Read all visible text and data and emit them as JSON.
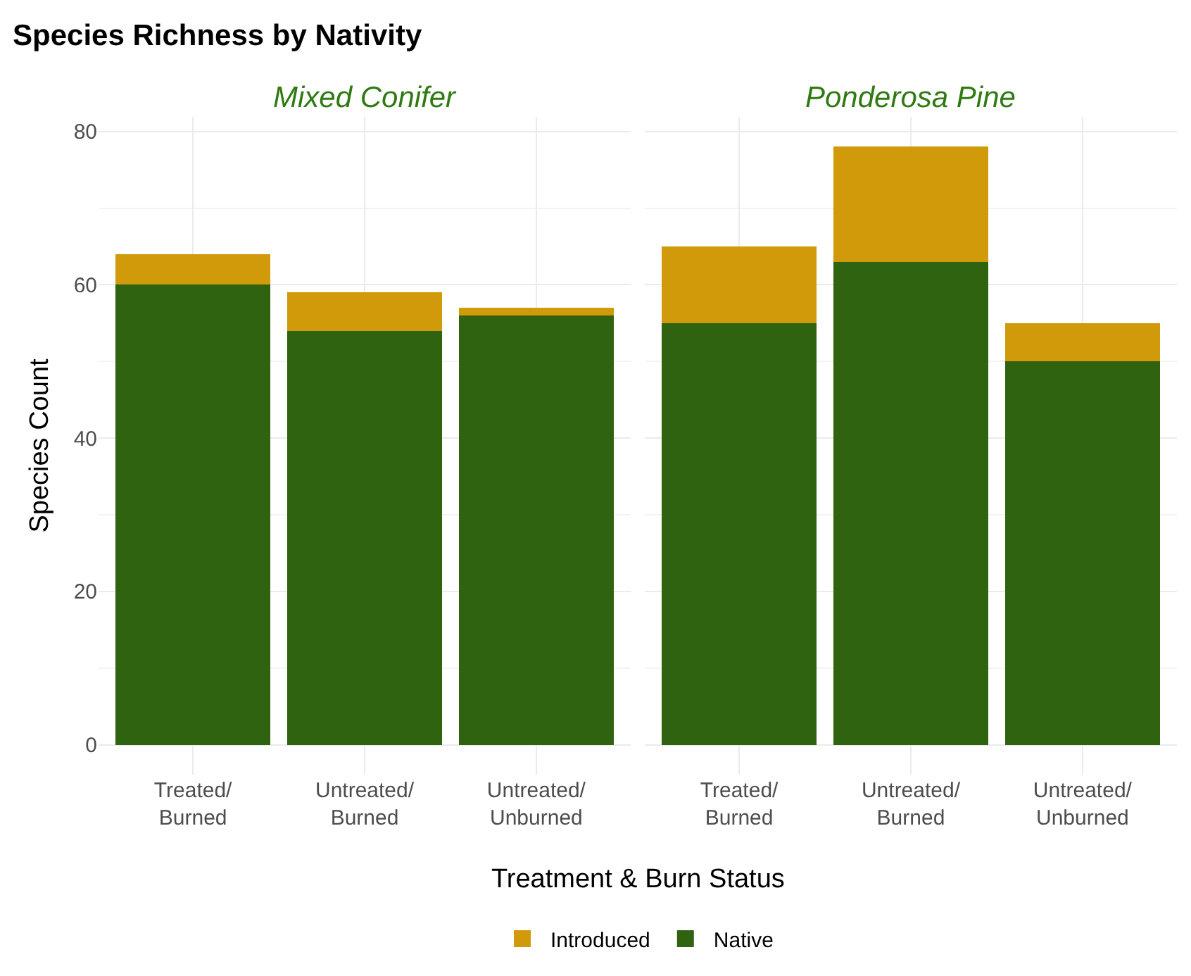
{
  "chart_data": [
    {
      "type": "bar",
      "title": "Species Richness by Nativity",
      "subtitle": "Mixed Conifer",
      "xlabel": "Treatment & Burn Status",
      "ylabel": "Species Count",
      "categories": [
        "Treated/\nBurned",
        "Untreated/\nBurned",
        "Untreated/\nUnburned"
      ],
      "stacked": true,
      "series": [
        {
          "name": "Native",
          "color": "#2f6310",
          "values": [
            60,
            54,
            56
          ]
        },
        {
          "name": "Introduced",
          "color": "#d19a0b",
          "values": [
            4,
            5,
            1
          ]
        }
      ],
      "ylim": [
        -3.9,
        81.9
      ],
      "yticks": [
        0,
        20,
        40,
        60,
        80
      ],
      "grid": true,
      "legend": "bottom"
    },
    {
      "type": "bar",
      "subtitle": "Ponderosa Pine",
      "categories": [
        "Treated/\nBurned",
        "Untreated/\nBurned",
        "Untreated/\nUnburned"
      ],
      "stacked": true,
      "series": [
        {
          "name": "Native",
          "color": "#2f6310",
          "values": [
            55,
            63,
            50
          ]
        },
        {
          "name": "Introduced",
          "color": "#d19a0b",
          "values": [
            10,
            15,
            5
          ]
        }
      ],
      "ylim": [
        -3.9,
        81.9
      ],
      "yticks": [
        0,
        20,
        40,
        60,
        80
      ],
      "grid": true,
      "tick_labels": "x"
    }
  ]
}
